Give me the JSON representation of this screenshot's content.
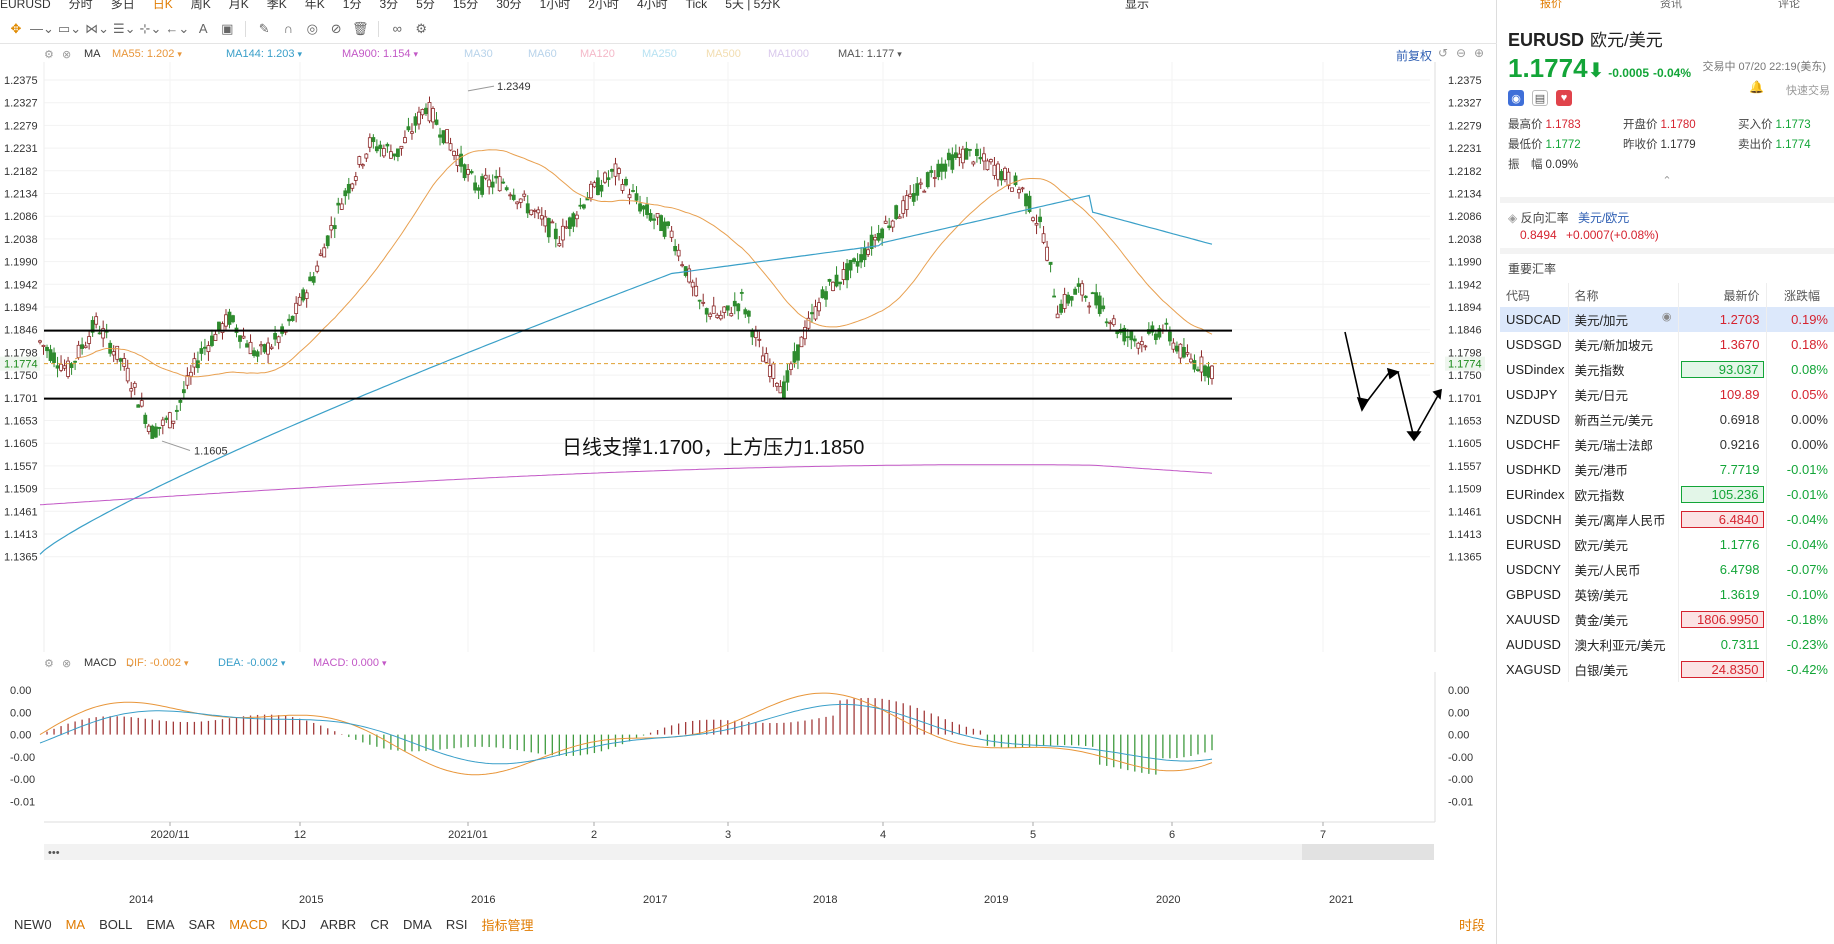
{
  "topbar": {
    "items": [
      "EURUSD",
      "分时",
      "多日",
      "日K",
      "周K",
      "月K",
      "季K",
      "年K",
      "1分",
      "3分",
      "5分",
      "15分",
      "30分",
      "1小时",
      "2小时",
      "4小时",
      "Tick",
      "5天 | 5分K"
    ],
    "active_index": 3,
    "right_items": [
      "显示"
    ]
  },
  "ma_legend": {
    "items": [
      {
        "label": "MA55: 1.202",
        "color": "#e8963a"
      },
      {
        "label": "MA144: 1.203",
        "color": "#3a9fc9"
      },
      {
        "label": "MA900: 1.154",
        "color": "#c257c6"
      },
      {
        "label": "MA30",
        "color": "#b8d3ea"
      },
      {
        "label": "MA60",
        "color": "#b8d3ea"
      },
      {
        "label": "MA120",
        "color": "#f4b8c8"
      },
      {
        "label": "MA250",
        "color": "#b8e2f2"
      },
      {
        "label": "MA500",
        "color": "#f2ddb0"
      },
      {
        "label": "MA1000",
        "color": "#d9c8ec"
      },
      {
        "label": "MA1: 1.177",
        "color": "#555555"
      }
    ],
    "prefix": "MA",
    "adjust": "前复权"
  },
  "main_axis": {
    "labels": [
      "1.2375",
      "1.2327",
      "1.2279",
      "1.2231",
      "1.2182",
      "1.2134",
      "1.2086",
      "1.2038",
      "1.1990",
      "1.1942",
      "1.1894",
      "1.1846",
      "1.1798",
      "1.1750",
      "1.1701",
      "1.1653",
      "1.1605",
      "1.1557",
      "1.1509",
      "1.1461",
      "1.1413",
      "1.1365"
    ],
    "current": "1.1774"
  },
  "annotations": {
    "high": "1.2349",
    "low": "1.1605",
    "text": "日线支撑1.1700，上方压力1.1850"
  },
  "macd_legend": {
    "name": "MACD",
    "items": [
      {
        "label": "DIF: -0.002",
        "color": "#e8963a"
      },
      {
        "label": "DEA: -0.002",
        "color": "#3a9fc9"
      },
      {
        "label": "MACD: 0.000",
        "color": "#c257c6"
      }
    ]
  },
  "macd_axis": [
    "0.00",
    "0.00",
    "0.00",
    "-0.00",
    "-0.00",
    "-0.01"
  ],
  "x_axis": [
    "2020/11",
    "12",
    "2021/01",
    "2",
    "3",
    "4",
    "5",
    "6",
    "7"
  ],
  "overview_axis": [
    "2014",
    "2015",
    "2016",
    "2017",
    "2018",
    "2019",
    "2020",
    "2021"
  ],
  "bottombar": {
    "items": [
      "NEW0",
      "MA",
      "BOLL",
      "EMA",
      "SAR",
      "MACD",
      "KDJ",
      "ARBR",
      "CR",
      "DMA",
      "RSI",
      "指标管理"
    ],
    "active": [
      1,
      5,
      11
    ],
    "right": "时段"
  },
  "right_panel": {
    "tabs": [
      "报价",
      "资讯",
      "评论"
    ],
    "symbol": "EURUSD",
    "symbol_cn": "欧元/美元",
    "price": "1.1774",
    "change": "-0.0005",
    "change_pct": "-0.04%",
    "trade_status": "交易中 07/20 22:19(美东)",
    "quick_trade": "快速交易",
    "stats": [
      {
        "label": "最高价",
        "value": "1.1783",
        "color": "red"
      },
      {
        "label": "开盘价",
        "value": "1.1780",
        "color": "red"
      },
      {
        "label": "买入价",
        "value": "1.1773",
        "color": "green"
      },
      {
        "label": "最低价",
        "value": "1.1772",
        "color": "green"
      },
      {
        "label": "昨收价",
        "value": "1.1779",
        "color": "plain"
      },
      {
        "label": "卖出价",
        "value": "1.1774",
        "color": "green"
      },
      {
        "label": "振　幅",
        "value": "0.09%",
        "color": "plain"
      }
    ],
    "inverse": {
      "label": "反向汇率",
      "pair": "美元/欧元",
      "value": "0.8494",
      "change": "+0.0007(+0.08%)"
    },
    "section_title": "重要汇率",
    "table_headers": [
      "代码",
      "名称",
      "最新价",
      "涨跌幅"
    ],
    "rows": [
      {
        "code": "USDCAD",
        "name": "美元/加元",
        "price": "1.2703",
        "pct": "0.19%",
        "pc": "red",
        "pcc": "red",
        "box": "",
        "sel": true
      },
      {
        "code": "USDSGD",
        "name": "美元/新加坡元",
        "price": "1.3670",
        "pct": "0.18%",
        "pc": "red",
        "pcc": "red",
        "box": ""
      },
      {
        "code": "USDindex",
        "name": "美元指数",
        "price": "93.037",
        "pct": "0.08%",
        "pc": "green",
        "pcc": "green",
        "box": "g"
      },
      {
        "code": "USDJPY",
        "name": "美元/日元",
        "price": "109.89",
        "pct": "0.05%",
        "pc": "red",
        "pcc": "red",
        "box": ""
      },
      {
        "code": "NZDUSD",
        "name": "新西兰元/美元",
        "price": "0.6918",
        "pct": "0.00%",
        "pc": "plain",
        "pcc": "plain",
        "box": ""
      },
      {
        "code": "USDCHF",
        "name": "美元/瑞士法郎",
        "price": "0.9216",
        "pct": "0.00%",
        "pc": "plain",
        "pcc": "plain",
        "box": ""
      },
      {
        "code": "USDHKD",
        "name": "美元/港币",
        "price": "7.7719",
        "pct": "-0.01%",
        "pc": "green",
        "pcc": "green",
        "box": ""
      },
      {
        "code": "EURindex",
        "name": "欧元指数",
        "price": "105.236",
        "pct": "-0.01%",
        "pc": "green",
        "pcc": "green",
        "box": "g"
      },
      {
        "code": "USDCNH",
        "name": "美元/离岸人民币",
        "price": "6.4840",
        "pct": "-0.04%",
        "pc": "red",
        "pcc": "green",
        "box": "r"
      },
      {
        "code": "EURUSD",
        "name": "欧元/美元",
        "price": "1.1776",
        "pct": "-0.04%",
        "pc": "green",
        "pcc": "green",
        "box": ""
      },
      {
        "code": "USDCNY",
        "name": "美元/人民币",
        "price": "6.4798",
        "pct": "-0.07%",
        "pc": "green",
        "pcc": "green",
        "box": ""
      },
      {
        "code": "GBPUSD",
        "name": "英镑/美元",
        "price": "1.3619",
        "pct": "-0.10%",
        "pc": "green",
        "pcc": "green",
        "box": ""
      },
      {
        "code": "XAUUSD",
        "name": "黄金/美元",
        "price": "1806.9950",
        "pct": "-0.18%",
        "pc": "red",
        "pcc": "green",
        "box": "r"
      },
      {
        "code": "AUDUSD",
        "name": "澳大利亚元/美元",
        "price": "0.7311",
        "pct": "-0.23%",
        "pc": "green",
        "pcc": "green",
        "box": ""
      },
      {
        "code": "XAGUSD",
        "name": "白银/美元",
        "price": "24.8350",
        "pct": "-0.42%",
        "pc": "red",
        "pcc": "green",
        "box": "r"
      }
    ]
  }
}
